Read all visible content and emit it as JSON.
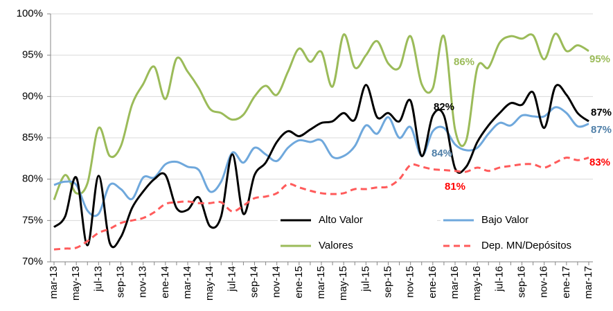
{
  "chart_data": {
    "type": "line",
    "categories": [
      "mar-13",
      null,
      "may-13",
      null,
      "jul-13",
      null,
      "sep-13",
      null,
      "nov-13",
      null,
      "ene-14",
      null,
      "mar-14",
      null,
      "may-14",
      null,
      "jul-14",
      null,
      "sep-14",
      null,
      "nov-14",
      null,
      "ene-15",
      null,
      "mar-15",
      null,
      "may-15",
      null,
      "jul-15",
      null,
      "sep-15",
      null,
      "nov-15",
      null,
      "ene-16",
      null,
      "mar-16",
      null,
      "may-16",
      null,
      "jul-16",
      null,
      "sep-16",
      null,
      "nov-16",
      null,
      "ene-17",
      null,
      "mar-17"
    ],
    "series": [
      {
        "name": "Alto Valor",
        "color": "#000000",
        "dash": false,
        "values": [
          74.2,
          75.5,
          80.2,
          72,
          80.4,
          72.3,
          73,
          76.5,
          78.5,
          80,
          80.5,
          76.5,
          76.3,
          77.8,
          74.3,
          75.5,
          83,
          75.8,
          80.5,
          82,
          84.5,
          85.8,
          85.2,
          86,
          86.8,
          87,
          88,
          87.2,
          91.4,
          87.5,
          88,
          87,
          89.5,
          82.8,
          87.7,
          87.7,
          81.3,
          81.5,
          84.5,
          86.5,
          88,
          89.2,
          89,
          90.5,
          86.2,
          91.2,
          90.2,
          88,
          87
        ]
      },
      {
        "name": "Bajo Valor",
        "color": "#6fa8dc",
        "dash": false,
        "values": [
          79.3,
          79.7,
          79.3,
          76.2,
          75.8,
          79.3,
          78.8,
          77.6,
          80.2,
          80.2,
          81.8,
          82.1,
          81.5,
          81.1,
          78.5,
          79.7,
          83.2,
          82,
          83.8,
          83,
          82.2,
          83.8,
          84.7,
          84.5,
          84.7,
          82.7,
          82.8,
          84,
          86.5,
          85.5,
          87.5,
          85,
          86.3,
          82.8,
          85.8,
          86.2,
          84.2,
          83.5,
          83.8,
          85.5,
          86.8,
          86.5,
          87.7,
          87.6,
          87.6,
          88.7,
          88,
          86.4,
          86.7
        ]
      },
      {
        "name": "Valores",
        "color": "#9bbb59",
        "dash": false,
        "values": [
          77.5,
          80.5,
          78.3,
          79.5,
          86.2,
          82.8,
          84,
          89,
          91.5,
          93.6,
          89.7,
          94.6,
          93,
          91,
          88.5,
          88,
          87.2,
          87.8,
          90,
          91.3,
          90.2,
          93,
          95.8,
          94.2,
          95.4,
          91.2,
          97.5,
          93.5,
          95,
          96.7,
          94,
          93.5,
          97.3,
          91.5,
          91,
          97.3,
          86,
          84.7,
          93.5,
          93.5,
          96.5,
          97.3,
          97,
          97.4,
          94.5,
          97.6,
          95.5,
          96.2,
          95.5
        ]
      },
      {
        "name": "Dep. MN/Depósitos",
        "color": "#ff5b5b",
        "dash": true,
        "values": [
          71.5,
          71.6,
          71.7,
          72.5,
          73.5,
          74,
          74.7,
          75,
          75.3,
          76,
          77,
          77.2,
          77.3,
          77.1,
          77.1,
          77.2,
          76.1,
          76.8,
          77.7,
          77.9,
          78.3,
          79.4,
          79,
          78.6,
          78.3,
          78.2,
          78.3,
          78.8,
          78.8,
          79,
          79.1,
          80,
          81.7,
          81.5,
          81.2,
          81.1,
          81,
          80.9,
          81.4,
          81,
          81.4,
          81.6,
          81.8,
          81.8,
          81.4,
          82,
          82.6,
          82.3,
          82.6
        ]
      }
    ],
    "ylim": [
      70,
      100
    ],
    "yticks": [
      {
        "value": 70,
        "label": "70%"
      },
      {
        "value": 75,
        "label": "75%"
      },
      {
        "value": 80,
        "label": "80%"
      },
      {
        "value": 85,
        "label": "85%"
      },
      {
        "value": 90,
        "label": "90%"
      },
      {
        "value": 95,
        "label": "95%"
      },
      {
        "value": 100,
        "label": "100%"
      }
    ],
    "grid": true,
    "legend": "bottom",
    "annotations": [
      {
        "text": "86%",
        "color": "#9bbb59"
      },
      {
        "text": "95%",
        "color": "#9bbb59"
      },
      {
        "text": "82%",
        "color": "#000000"
      },
      {
        "text": "87%",
        "color": "#000000"
      },
      {
        "text": "87%",
        "color": "#4f7fa8"
      },
      {
        "text": "84%",
        "color": "#4f7fa8"
      },
      {
        "text": "83%",
        "color": "#ff0000"
      },
      {
        "text": "81%",
        "color": "#ff0000"
      }
    ]
  }
}
